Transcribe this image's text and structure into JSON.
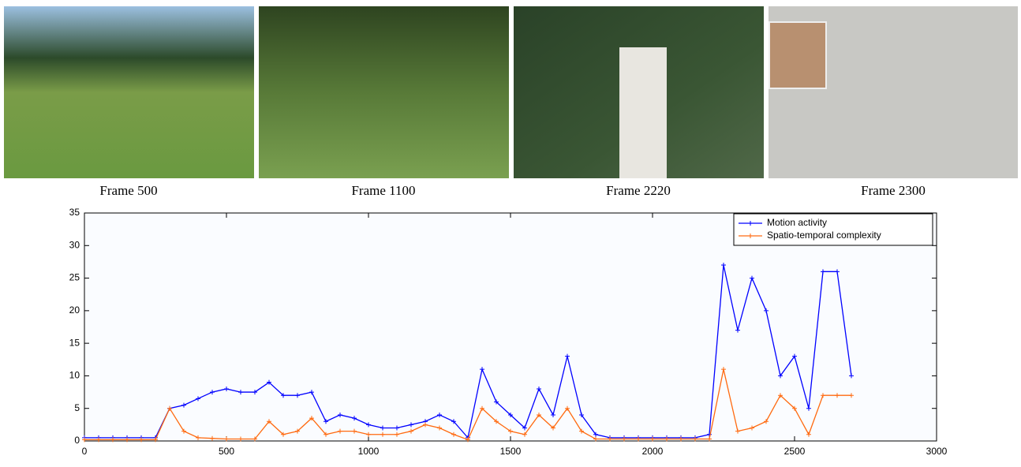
{
  "frames": [
    {
      "caption": "Frame 500"
    },
    {
      "caption": "Frame 1100"
    },
    {
      "caption": "Frame 2220"
    },
    {
      "caption": "Frame 2300"
    }
  ],
  "chart_data": {
    "type": "line",
    "grid": false,
    "legend": "upper right",
    "xlim": [
      0,
      3000
    ],
    "xticks": [
      0,
      500,
      1000,
      1500,
      2000,
      2500,
      3000
    ],
    "ylim": [
      0,
      35
    ],
    "yticks": [
      0,
      5,
      10,
      15,
      20,
      25,
      30,
      35
    ],
    "x": [
      0,
      50,
      100,
      150,
      200,
      250,
      300,
      350,
      400,
      450,
      500,
      550,
      600,
      650,
      700,
      750,
      800,
      850,
      900,
      950,
      1000,
      1050,
      1100,
      1150,
      1200,
      1250,
      1300,
      1350,
      1400,
      1450,
      1500,
      1550,
      1600,
      1650,
      1700,
      1750,
      1800,
      1850,
      1900,
      1950,
      2000,
      2050,
      2100,
      2150,
      2200,
      2250,
      2300,
      2350,
      2400,
      2450,
      2500,
      2550,
      2600,
      2650,
      2700
    ],
    "series": [
      {
        "name": "Motion activity",
        "color": "#0000ff",
        "values": [
          0.5,
          0.5,
          0.5,
          0.5,
          0.5,
          0.5,
          5,
          5.5,
          6.5,
          7.5,
          8,
          7.5,
          7.5,
          9,
          7,
          7,
          7.5,
          3,
          4,
          3.5,
          2.5,
          2,
          2,
          2.5,
          3,
          4,
          3,
          0.5,
          11,
          6,
          4,
          2,
          8,
          4,
          13,
          4,
          1,
          0.5,
          0.5,
          0.5,
          0.5,
          0.5,
          0.5,
          0.5,
          1,
          27,
          17,
          25,
          20,
          10,
          13,
          5,
          26,
          26,
          10
        ]
      },
      {
        "name": "Spatio-temporal complexity",
        "color": "#ff6a10",
        "values": [
          0.2,
          0.2,
          0.2,
          0.2,
          0.2,
          0.2,
          5,
          1.5,
          0.5,
          0.4,
          0.3,
          0.3,
          0.3,
          3,
          1,
          1.5,
          3.5,
          1,
          1.5,
          1.5,
          1,
          1,
          1,
          1.5,
          2.5,
          2,
          1,
          0.2,
          5,
          3,
          1.5,
          1,
          4,
          2,
          5,
          1.5,
          0.3,
          0.3,
          0.3,
          0.3,
          0.3,
          0.3,
          0.3,
          0.3,
          0.3,
          11,
          1.5,
          2,
          3,
          7,
          5,
          1,
          7,
          7,
          7
        ]
      }
    ]
  }
}
